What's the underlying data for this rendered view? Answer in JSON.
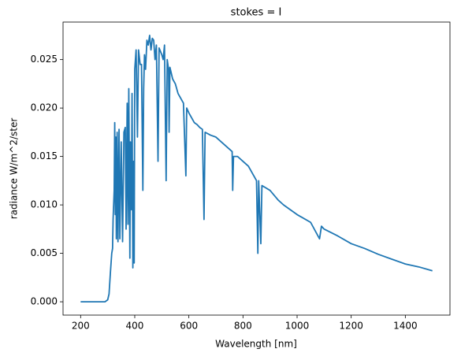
{
  "chart_data": {
    "type": "line",
    "title": "stokes = I",
    "x_label": "Wavelength [nm]",
    "y_label": "radiance W/m^2/ster",
    "color": "#1f77b4",
    "x": [
      200,
      250,
      290,
      300,
      305,
      310,
      315,
      318,
      320,
      322,
      324,
      326,
      328,
      330,
      332,
      335,
      338,
      342,
      345,
      350,
      355,
      360,
      365,
      368,
      372,
      375,
      378,
      382,
      384,
      388,
      390,
      393,
      396,
      398,
      400,
      405,
      410,
      414,
      420,
      425,
      430,
      433,
      436,
      440,
      445,
      450,
      455,
      460,
      465,
      470,
      475,
      480,
      486,
      490,
      500,
      505,
      510,
      516,
      520,
      525,
      527,
      530,
      540,
      550,
      560,
      570,
      580,
      589,
      592,
      600,
      610,
      620,
      630,
      640,
      650,
      656,
      660,
      680,
      700,
      720,
      740,
      760,
      762,
      765,
      780,
      800,
      820,
      840,
      850,
      855,
      858,
      866,
      870,
      900,
      930,
      950,
      1000,
      1050,
      1083,
      1090,
      1100,
      1150,
      1200,
      1250,
      1300,
      1350,
      1400,
      1450,
      1500
    ],
    "values": [
      0,
      0,
      0,
      0.0002,
      0.0008,
      0.003,
      0.005,
      0.0055,
      0.0085,
      0.01,
      0.0115,
      0.0185,
      0.009,
      0.017,
      0.0065,
      0.0175,
      0.0062,
      0.0178,
      0.0065,
      0.0165,
      0.0062,
      0.0175,
      0.018,
      0.0075,
      0.0205,
      0.008,
      0.022,
      0.0045,
      0.0165,
      0.0095,
      0.0215,
      0.0035,
      0.0145,
      0.004,
      0.024,
      0.026,
      0.017,
      0.026,
      0.0245,
      0.0245,
      0.0115,
      0.022,
      0.0255,
      0.024,
      0.027,
      0.0265,
      0.0275,
      0.026,
      0.0272,
      0.027,
      0.025,
      0.0265,
      0.0145,
      0.0262,
      0.0255,
      0.025,
      0.0265,
      0.0125,
      0.025,
      0.024,
      0.0175,
      0.0242,
      0.023,
      0.0225,
      0.0215,
      0.021,
      0.0205,
      0.013,
      0.02,
      0.0195,
      0.019,
      0.0185,
      0.0183,
      0.018,
      0.0178,
      0.0085,
      0.0175,
      0.0172,
      0.017,
      0.0165,
      0.016,
      0.0155,
      0.0115,
      0.015,
      0.015,
      0.0145,
      0.014,
      0.013,
      0.0125,
      0.005,
      0.0125,
      0.006,
      0.012,
      0.0115,
      0.0105,
      0.01,
      0.009,
      0.0082,
      0.0065,
      0.0078,
      0.0075,
      0.0068,
      0.006,
      0.0055,
      0.0049,
      0.0044,
      0.0039,
      0.0036,
      0.0032
    ],
    "xlim": [
      135,
      1565
    ],
    "ylim": [
      -0.001375,
      0.028875
    ],
    "xticks": [
      200,
      400,
      600,
      800,
      1000,
      1200,
      1400
    ],
    "yticks": [
      {
        "value": 0,
        "label": "0.000"
      },
      {
        "value": 0.005,
        "label": "0.005"
      },
      {
        "value": 0.01,
        "label": "0.010"
      },
      {
        "value": 0.015,
        "label": "0.015"
      },
      {
        "value": 0.02,
        "label": "0.020"
      },
      {
        "value": 0.025,
        "label": "0.025"
      }
    ]
  }
}
